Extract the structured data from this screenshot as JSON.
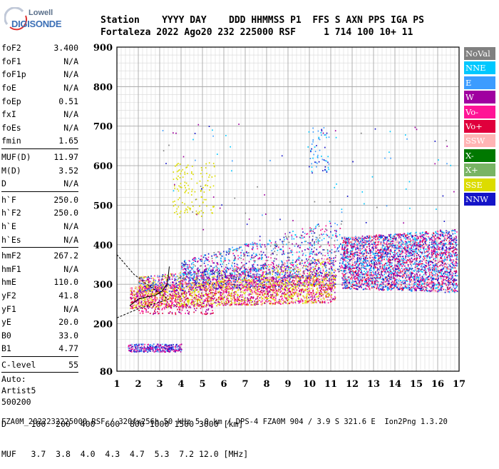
{
  "logo": {
    "top": "Lowell",
    "bottom": "DIGISONDE"
  },
  "header": {
    "labels": "Station    YYYY DAY    DDD HHMMSS P1  FFS S AXN PPS IGA PS",
    "values": "Fortaleza 2022 Ago20 232 225000 RSF     1 714 100 10+ 11"
  },
  "params": [
    {
      "name": "foF2",
      "value": "3.400"
    },
    {
      "name": "foF1",
      "value": "N/A"
    },
    {
      "name": "foF1p",
      "value": "N/A"
    },
    {
      "name": "foE",
      "value": "N/A"
    },
    {
      "name": "foEp",
      "value": "0.51"
    },
    {
      "name": "fxI",
      "value": "N/A"
    },
    {
      "name": "foEs",
      "value": "N/A"
    },
    {
      "name": "fmin",
      "value": "1.65"
    },
    {
      "sep": true
    },
    {
      "name": "MUF(D)",
      "value": "11.97"
    },
    {
      "name": "M(D)",
      "value": "3.52"
    },
    {
      "name": "D",
      "value": "N/A"
    },
    {
      "sep": true
    },
    {
      "name": "h`F",
      "value": "250.0"
    },
    {
      "name": "h`F2",
      "value": "250.0"
    },
    {
      "name": "h`E",
      "value": "N/A"
    },
    {
      "name": "h`Es",
      "value": "N/A"
    },
    {
      "sep": true
    },
    {
      "name": "hmF2",
      "value": "267.2"
    },
    {
      "name": "hmF1",
      "value": "N/A"
    },
    {
      "name": "hmE",
      "value": "110.0"
    },
    {
      "name": "yF2",
      "value": "41.8"
    },
    {
      "name": "yF1",
      "value": "N/A"
    },
    {
      "name": "yE",
      "value": "20.0"
    },
    {
      "name": "B0",
      "value": "33.0"
    },
    {
      "name": "B1",
      "value": "4.77"
    },
    {
      "sep": true
    },
    {
      "name": "C-level",
      "value": "55"
    },
    {
      "sep": true
    }
  ],
  "autoscaling": [
    "Auto:",
    "Artist5",
    "500200"
  ],
  "chart_data": {
    "type": "scatter",
    "title": "",
    "xlabel": "",
    "ylabel": "",
    "xlim": [
      1,
      17
    ],
    "ylim": [
      80,
      900
    ],
    "x_ticks": [
      1,
      2,
      3,
      4,
      5,
      6,
      7,
      8,
      9,
      10,
      11,
      12,
      13,
      14,
      15,
      16,
      17
    ],
    "y_ticks": [
      80,
      200,
      300,
      400,
      500,
      600,
      700,
      800,
      900
    ],
    "grid": true,
    "legend_position": "right",
    "legend": [
      {
        "label": "NoVal",
        "color": "#808080"
      },
      {
        "label": "NNE",
        "color": "#00c8ff"
      },
      {
        "label": "E",
        "color": "#3c9cff"
      },
      {
        "label": "W",
        "color": "#a000a0"
      },
      {
        "label": "Vo-",
        "color": "#ff1496"
      },
      {
        "label": "Vo+",
        "color": "#e0003c"
      },
      {
        "label": "SSW",
        "color": "#ffb4b4"
      },
      {
        "label": "X-",
        "color": "#007800"
      },
      {
        "label": "X+",
        "color": "#78b464"
      },
      {
        "label": "SSE",
        "color": "#dcdc00"
      },
      {
        "label": "NNW",
        "color": "#1414c8"
      }
    ],
    "clusters": [
      {
        "name": "F-trace-bottom",
        "x": [
          1.6,
          11.2
        ],
        "y": [
          240,
          295
        ],
        "y_end": [
          255,
          330
        ],
        "count": 2600,
        "colors": [
          "#dcdc00",
          "#ff1496",
          "#e0003c",
          "#ffb4b4",
          "#dcdc00",
          "#a000a0"
        ]
      },
      {
        "name": "F-trace-top",
        "x": [
          2.0,
          11.2
        ],
        "y": [
          280,
          320
        ],
        "y_end": [
          300,
          370
        ],
        "count": 1500,
        "colors": [
          "#ffb4b4",
          "#dcdc00",
          "#ff1496",
          "#3c9cff",
          "#a000a0",
          "#1414c8"
        ]
      },
      {
        "name": "F-spread-mid",
        "x": [
          4.0,
          11.5
        ],
        "y": [
          310,
          360
        ],
        "y_end": [
          320,
          470
        ],
        "count": 900,
        "colors": [
          "#3c9cff",
          "#00c8ff",
          "#a000a0",
          "#1414c8",
          "#ff1496",
          "#808080"
        ]
      },
      {
        "name": "spread-F-high",
        "x": [
          11.5,
          16.9
        ],
        "y": [
          290,
          420
        ],
        "y_end": [
          280,
          440
        ],
        "count": 3400,
        "colors": [
          "#1414c8",
          "#3c9cff",
          "#00c8ff",
          "#a000a0",
          "#ff1496",
          "#ffb4b4",
          "#e0003c"
        ]
      },
      {
        "name": "low-echoes",
        "x": [
          1.5,
          4.0
        ],
        "y": [
          130,
          150
        ],
        "y_end": [
          130,
          150
        ],
        "count": 320,
        "colors": [
          "#a000a0",
          "#1414c8",
          "#ff1496",
          "#3c9cff"
        ]
      },
      {
        "name": "mid-scatter",
        "x": [
          2.0,
          5.5
        ],
        "y": [
          225,
          250
        ],
        "y_end": [
          225,
          250
        ],
        "count": 120,
        "colors": [
          "#a000a0",
          "#e0003c",
          "#ff1496"
        ]
      },
      {
        "name": "upper-yellow",
        "x": [
          3.6,
          5.6
        ],
        "y": [
          470,
          610
        ],
        "y_end": [
          470,
          610
        ],
        "count": 130,
        "colors": [
          "#dcdc00"
        ]
      },
      {
        "name": "upper-sparse",
        "x": [
          3.0,
          16.8
        ],
        "y": [
          420,
          710
        ],
        "y_end": [
          420,
          710
        ],
        "count": 90,
        "colors": [
          "#00c8ff",
          "#3c9cff",
          "#a000a0",
          "#808080",
          "#1414c8"
        ]
      },
      {
        "name": "layer-10MHz",
        "x": [
          9.9,
          10.9
        ],
        "y": [
          580,
          700
        ],
        "y_end": [
          580,
          700
        ],
        "count": 60,
        "colors": [
          "#00c8ff",
          "#3c9cff",
          "#1414c8"
        ]
      }
    ],
    "profile_curves": [
      {
        "name": "bottomside-upper",
        "points": [
          [
            1.0,
            375
          ],
          [
            1.8,
            325
          ],
          [
            2.4,
            300
          ],
          [
            2.8,
            285
          ],
          [
            3.2,
            270
          ],
          [
            3.4,
            262
          ]
        ]
      },
      {
        "name": "bottomside-lower",
        "points": [
          [
            1.0,
            215
          ],
          [
            2.0,
            238
          ],
          [
            2.6,
            248
          ],
          [
            3.0,
            255
          ],
          [
            3.4,
            262
          ]
        ]
      },
      {
        "name": "trace-fit-loop",
        "points": [
          [
            1.6,
            246
          ],
          [
            2.0,
            262
          ],
          [
            2.4,
            268
          ],
          [
            2.8,
            272
          ],
          [
            3.1,
            282
          ],
          [
            3.35,
            300
          ],
          [
            3.4,
            320
          ],
          [
            3.45,
            345
          ]
        ]
      }
    ]
  },
  "d_table": {
    "d_row": "D     100  200  400  600  800 1000 1500 3000 [km]",
    "muf_row": "MUF   3.7  3.8  4.0  4.3  4.7  5.3  7.2 12.0 [MHz]"
  },
  "footer": "FZA0M_2022232225000.RSF / 320fx256h 50 kHz 5.0 km / DPS-4 FZA0M 904 / 3.9 S 321.6 E  Ion2Png 1.3.20"
}
